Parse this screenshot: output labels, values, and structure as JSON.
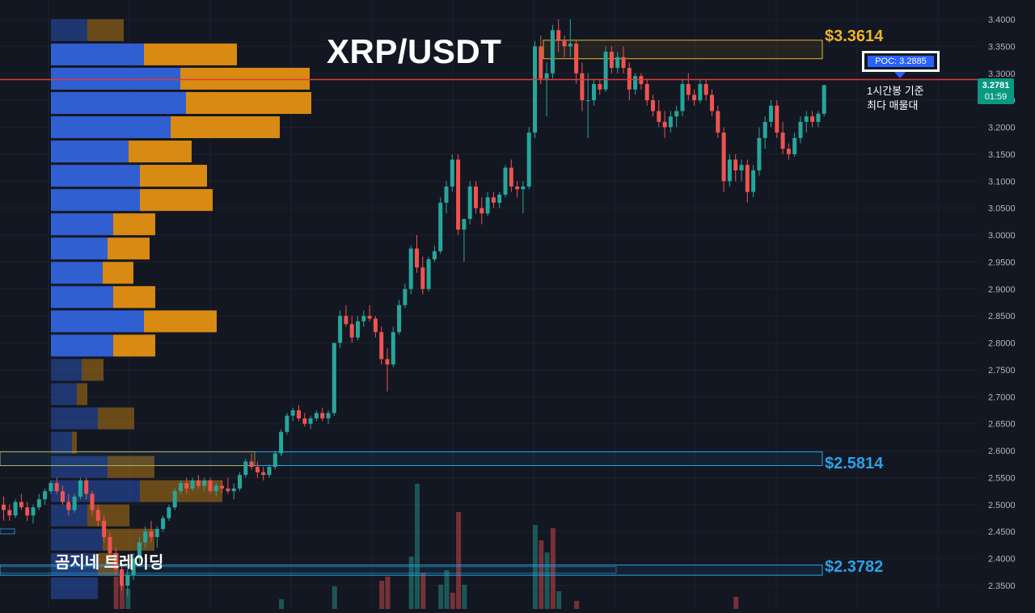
{
  "title": "XRP/USDT",
  "watermark": "곰지네 트레이딩",
  "levels": {
    "top": {
      "label": "$3.3614",
      "value": 3.3614,
      "color": "#f0b429"
    },
    "mid": {
      "label": "$2.5814",
      "value": 2.5814,
      "color": "#29a3ea"
    },
    "low": {
      "label": "$2.3782",
      "value": 2.3782,
      "color": "#29a3ea"
    }
  },
  "poc": {
    "label": "POC: 3.2885",
    "value": 3.2885,
    "caption_line1": "1시간봉 기준",
    "caption_line2": "최다 매물대",
    "color": "#e03a3a"
  },
  "last_price": {
    "value": "3.2781",
    "timer": "01:59",
    "color": "#089981"
  },
  "colors": {
    "background": "#131722",
    "grid": "#1e222d",
    "up": "#26a69a",
    "down": "#ef5350",
    "vp_up": "#2f5fd0",
    "vp_down": "#d88a12"
  },
  "chart_data": {
    "type": "candlestick",
    "title": "XRP/USDT",
    "y_axis": {
      "ylim": [
        2.32,
        3.41
      ],
      "ticks": [
        "3.4000",
        "3.3500",
        "3.3000",
        "3.2500",
        "3.2000",
        "3.1500",
        "3.1000",
        "3.0500",
        "3.0000",
        "2.9500",
        "2.9000",
        "2.8500",
        "2.8000",
        "2.7500",
        "2.7000",
        "2.6500",
        "2.6000",
        "2.5500",
        "2.5000",
        "2.4500",
        "2.4000",
        "2.3500"
      ]
    },
    "volume_profile": [
      {
        "p": 3.38,
        "up": 45,
        "down": 45
      },
      {
        "p": 3.335,
        "up": 115,
        "down": 115
      },
      {
        "p": 3.29,
        "up": 160,
        "down": 160
      },
      {
        "p": 3.245,
        "up": 167,
        "down": 155
      },
      {
        "p": 3.2,
        "up": 148,
        "down": 135
      },
      {
        "p": 3.155,
        "up": 96,
        "down": 78
      },
      {
        "p": 3.11,
        "up": 110,
        "down": 83
      },
      {
        "p": 3.065,
        "up": 110,
        "down": 90
      },
      {
        "p": 3.02,
        "up": 77,
        "down": 52
      },
      {
        "p": 2.975,
        "up": 70,
        "down": 52
      },
      {
        "p": 2.93,
        "up": 64,
        "down": 38
      },
      {
        "p": 2.885,
        "up": 77,
        "down": 52
      },
      {
        "p": 2.84,
        "up": 115,
        "down": 90
      },
      {
        "p": 2.795,
        "up": 77,
        "down": 52
      },
      {
        "p": 2.75,
        "up": 38,
        "down": 27
      },
      {
        "p": 2.705,
        "up": 32,
        "down": 13
      },
      {
        "p": 2.66,
        "up": 58,
        "down": 45
      },
      {
        "p": 2.615,
        "up": 26,
        "down": 6
      },
      {
        "p": 2.57,
        "up": 70,
        "down": 58
      },
      {
        "p": 2.525,
        "up": 110,
        "down": 102
      },
      {
        "p": 2.48,
        "up": 45,
        "down": 52
      },
      {
        "p": 2.435,
        "up": 64,
        "down": 64
      },
      {
        "p": 2.39,
        "up": 58,
        "down": 26
      },
      {
        "p": 2.345,
        "up": 58,
        "down": 0
      }
    ],
    "candles": [
      [
        2.5,
        2.515,
        2.47,
        2.49
      ],
      [
        2.49,
        2.5,
        2.47,
        2.48
      ],
      [
        2.48,
        2.51,
        2.475,
        2.505
      ],
      [
        2.505,
        2.52,
        2.49,
        2.495
      ],
      [
        2.495,
        2.505,
        2.47,
        2.48
      ],
      [
        2.48,
        2.5,
        2.465,
        2.495
      ],
      [
        2.495,
        2.52,
        2.49,
        2.51
      ],
      [
        2.51,
        2.53,
        2.5,
        2.525
      ],
      [
        2.525,
        2.545,
        2.52,
        2.54
      ],
      [
        2.54,
        2.55,
        2.52,
        2.525
      ],
      [
        2.525,
        2.535,
        2.5,
        2.505
      ],
      [
        2.505,
        2.52,
        2.48,
        2.49
      ],
      [
        2.49,
        2.52,
        2.485,
        2.515
      ],
      [
        2.515,
        2.55,
        2.51,
        2.545
      ],
      [
        2.545,
        2.55,
        2.51,
        2.52
      ],
      [
        2.52,
        2.525,
        2.48,
        2.49
      ],
      [
        2.49,
        2.5,
        2.46,
        2.47
      ],
      [
        2.47,
        2.48,
        2.43,
        2.44
      ],
      [
        2.44,
        2.45,
        2.4,
        2.41
      ],
      [
        2.41,
        2.42,
        2.37,
        2.38
      ],
      [
        2.38,
        2.39,
        2.34,
        2.35
      ],
      [
        2.35,
        2.38,
        2.33,
        2.37
      ],
      [
        2.37,
        2.41,
        2.36,
        2.4
      ],
      [
        2.4,
        2.44,
        2.39,
        2.43
      ],
      [
        2.43,
        2.46,
        2.42,
        2.45
      ],
      [
        2.45,
        2.47,
        2.43,
        2.44
      ],
      [
        2.44,
        2.46,
        2.42,
        2.455
      ],
      [
        2.455,
        2.48,
        2.45,
        2.475
      ],
      [
        2.475,
        2.5,
        2.47,
        2.495
      ],
      [
        2.495,
        2.53,
        2.49,
        2.525
      ],
      [
        2.525,
        2.545,
        2.52,
        2.54
      ],
      [
        2.54,
        2.55,
        2.52,
        2.53
      ],
      [
        2.53,
        2.55,
        2.525,
        2.545
      ],
      [
        2.545,
        2.555,
        2.53,
        2.535
      ],
      [
        2.535,
        2.55,
        2.525,
        2.545
      ],
      [
        2.545,
        2.55,
        2.52,
        2.525
      ],
      [
        2.525,
        2.54,
        2.515,
        2.535
      ],
      [
        2.535,
        2.545,
        2.52,
        2.53
      ],
      [
        2.53,
        2.55,
        2.52,
        2.525
      ],
      [
        2.525,
        2.54,
        2.51,
        2.53
      ],
      [
        2.53,
        2.56,
        2.525,
        2.555
      ],
      [
        2.555,
        2.585,
        2.55,
        2.58
      ],
      [
        2.58,
        2.595,
        2.565,
        2.57
      ],
      [
        2.57,
        2.58,
        2.55,
        2.56
      ],
      [
        2.56,
        2.57,
        2.545,
        2.555
      ],
      [
        2.555,
        2.575,
        2.55,
        2.57
      ],
      [
        2.57,
        2.6,
        2.565,
        2.595
      ],
      [
        2.595,
        2.64,
        2.59,
        2.635
      ],
      [
        2.635,
        2.67,
        2.63,
        2.665
      ],
      [
        2.665,
        2.68,
        2.655,
        2.675
      ],
      [
        2.675,
        2.685,
        2.655,
        2.66
      ],
      [
        2.66,
        2.67,
        2.645,
        2.65
      ],
      [
        2.65,
        2.665,
        2.64,
        2.66
      ],
      [
        2.66,
        2.675,
        2.655,
        2.67
      ],
      [
        2.67,
        2.68,
        2.655,
        2.66
      ],
      [
        2.66,
        2.675,
        2.65,
        2.67
      ],
      [
        2.67,
        2.8,
        2.665,
        2.8
      ],
      [
        2.8,
        2.86,
        2.79,
        2.85
      ],
      [
        2.85,
        2.87,
        2.83,
        2.835
      ],
      [
        2.835,
        2.85,
        2.8,
        2.81
      ],
      [
        2.81,
        2.85,
        2.805,
        2.84
      ],
      [
        2.84,
        2.86,
        2.83,
        2.85
      ],
      [
        2.85,
        2.87,
        2.84,
        2.845
      ],
      [
        2.845,
        2.85,
        2.81,
        2.82
      ],
      [
        2.82,
        2.83,
        2.76,
        2.77
      ],
      [
        2.77,
        2.79,
        2.71,
        2.76
      ],
      [
        2.76,
        2.83,
        2.755,
        2.82
      ],
      [
        2.82,
        2.88,
        2.815,
        2.87
      ],
      [
        2.87,
        2.91,
        2.865,
        2.9
      ],
      [
        2.9,
        2.98,
        2.89,
        2.975
      ],
      [
        2.975,
        3.0,
        2.93,
        2.94
      ],
      [
        2.94,
        2.96,
        2.89,
        2.9
      ],
      [
        2.9,
        2.96,
        2.895,
        2.955
      ],
      [
        2.955,
        2.98,
        2.95,
        2.97
      ],
      [
        2.97,
        3.07,
        2.965,
        3.06
      ],
      [
        3.06,
        3.1,
        3.04,
        3.09
      ],
      [
        3.09,
        3.15,
        3.08,
        3.14
      ],
      [
        3.14,
        3.15,
        3.0,
        3.01
      ],
      [
        3.01,
        3.03,
        2.95,
        3.03
      ],
      [
        3.03,
        3.1,
        3.02,
        3.09
      ],
      [
        3.09,
        3.1,
        3.04,
        3.05
      ],
      [
        3.05,
        3.07,
        3.02,
        3.04
      ],
      [
        3.04,
        3.08,
        3.035,
        3.07
      ],
      [
        3.07,
        3.08,
        3.05,
        3.06
      ],
      [
        3.06,
        3.08,
        3.05,
        3.075
      ],
      [
        3.075,
        3.13,
        3.07,
        3.125
      ],
      [
        3.125,
        3.14,
        3.08,
        3.09
      ],
      [
        3.09,
        3.1,
        3.07,
        3.085
      ],
      [
        3.085,
        3.1,
        3.04,
        3.09
      ],
      [
        3.09,
        3.2,
        3.085,
        3.19
      ],
      [
        3.19,
        3.36,
        3.18,
        3.35
      ],
      [
        3.35,
        3.37,
        3.28,
        3.29
      ],
      [
        3.29,
        3.32,
        3.22,
        3.3
      ],
      [
        3.3,
        3.39,
        3.29,
        3.38
      ],
      [
        3.38,
        3.4,
        3.34,
        3.36
      ],
      [
        3.36,
        3.37,
        3.33,
        3.35
      ],
      [
        3.35,
        3.4,
        3.33,
        3.355
      ],
      [
        3.355,
        3.36,
        3.28,
        3.3
      ],
      [
        3.3,
        3.32,
        3.23,
        3.25
      ],
      [
        3.25,
        3.3,
        3.18,
        3.25
      ],
      [
        3.25,
        3.29,
        3.24,
        3.28
      ],
      [
        3.28,
        3.29,
        3.26,
        3.27
      ],
      [
        3.27,
        3.35,
        3.265,
        3.34
      ],
      [
        3.34,
        3.35,
        3.3,
        3.31
      ],
      [
        3.31,
        3.34,
        3.3,
        3.33
      ],
      [
        3.33,
        3.35,
        3.3,
        3.31
      ],
      [
        3.31,
        3.32,
        3.25,
        3.27
      ],
      [
        3.27,
        3.3,
        3.26,
        3.295
      ],
      [
        3.295,
        3.3,
        3.27,
        3.28
      ],
      [
        3.28,
        3.29,
        3.24,
        3.25
      ],
      [
        3.25,
        3.26,
        3.22,
        3.23
      ],
      [
        3.23,
        3.25,
        3.2,
        3.21
      ],
      [
        3.21,
        3.23,
        3.18,
        3.2
      ],
      [
        3.2,
        3.23,
        3.19,
        3.22
      ],
      [
        3.22,
        3.24,
        3.2,
        3.23
      ],
      [
        3.23,
        3.29,
        3.22,
        3.28
      ],
      [
        3.28,
        3.3,
        3.25,
        3.26
      ],
      [
        3.26,
        3.27,
        3.24,
        3.25
      ],
      [
        3.25,
        3.29,
        3.245,
        3.28
      ],
      [
        3.28,
        3.29,
        3.25,
        3.26
      ],
      [
        3.26,
        3.27,
        3.22,
        3.23
      ],
      [
        3.23,
        3.24,
        3.18,
        3.19
      ],
      [
        3.19,
        3.2,
        3.08,
        3.1
      ],
      [
        3.1,
        3.15,
        3.09,
        3.14
      ],
      [
        3.14,
        3.15,
        3.1,
        3.12
      ],
      [
        3.12,
        3.14,
        3.1,
        3.13
      ],
      [
        3.13,
        3.14,
        3.06,
        3.08
      ],
      [
        3.08,
        3.13,
        3.07,
        3.12
      ],
      [
        3.12,
        3.2,
        3.11,
        3.18
      ],
      [
        3.18,
        3.22,
        3.16,
        3.21
      ],
      [
        3.21,
        3.25,
        3.2,
        3.24
      ],
      [
        3.24,
        3.25,
        3.18,
        3.19
      ],
      [
        3.19,
        3.21,
        3.15,
        3.16
      ],
      [
        3.16,
        3.17,
        3.14,
        3.15
      ],
      [
        3.15,
        3.19,
        3.145,
        3.18
      ],
      [
        3.18,
        3.22,
        3.17,
        3.21
      ],
      [
        3.21,
        3.23,
        3.19,
        3.22
      ],
      [
        3.22,
        3.23,
        3.2,
        3.21
      ],
      [
        3.21,
        3.23,
        3.2,
        3.225
      ],
      [
        3.225,
        3.2785,
        3.22,
        3.2781
      ]
    ],
    "volume": [
      {
        "i": 19,
        "h": 40,
        "up": false
      },
      {
        "i": 20,
        "h": 30,
        "up": false
      },
      {
        "i": 21,
        "h": 25,
        "up": true
      },
      {
        "i": 47,
        "h": 12,
        "up": true
      },
      {
        "i": 56,
        "h": 28,
        "up": true
      },
      {
        "i": 64,
        "h": 35,
        "up": false
      },
      {
        "i": 65,
        "h": 40,
        "up": false
      },
      {
        "i": 69,
        "h": 65,
        "up": true
      },
      {
        "i": 70,
        "h": 155,
        "up": true
      },
      {
        "i": 71,
        "h": 45,
        "up": false
      },
      {
        "i": 74,
        "h": 30,
        "up": true
      },
      {
        "i": 75,
        "h": 48,
        "up": true
      },
      {
        "i": 76,
        "h": 20,
        "up": false
      },
      {
        "i": 77,
        "h": 120,
        "up": false
      },
      {
        "i": 78,
        "h": 30,
        "up": true
      },
      {
        "i": 90,
        "h": 104,
        "up": true
      },
      {
        "i": 91,
        "h": 85,
        "up": false
      },
      {
        "i": 92,
        "h": 70,
        "up": true
      },
      {
        "i": 93,
        "h": 100,
        "up": false
      },
      {
        "i": 94,
        "h": 22,
        "up": true
      },
      {
        "i": 97,
        "h": 10,
        "up": false
      },
      {
        "i": 124,
        "h": 15,
        "up": false
      }
    ]
  }
}
